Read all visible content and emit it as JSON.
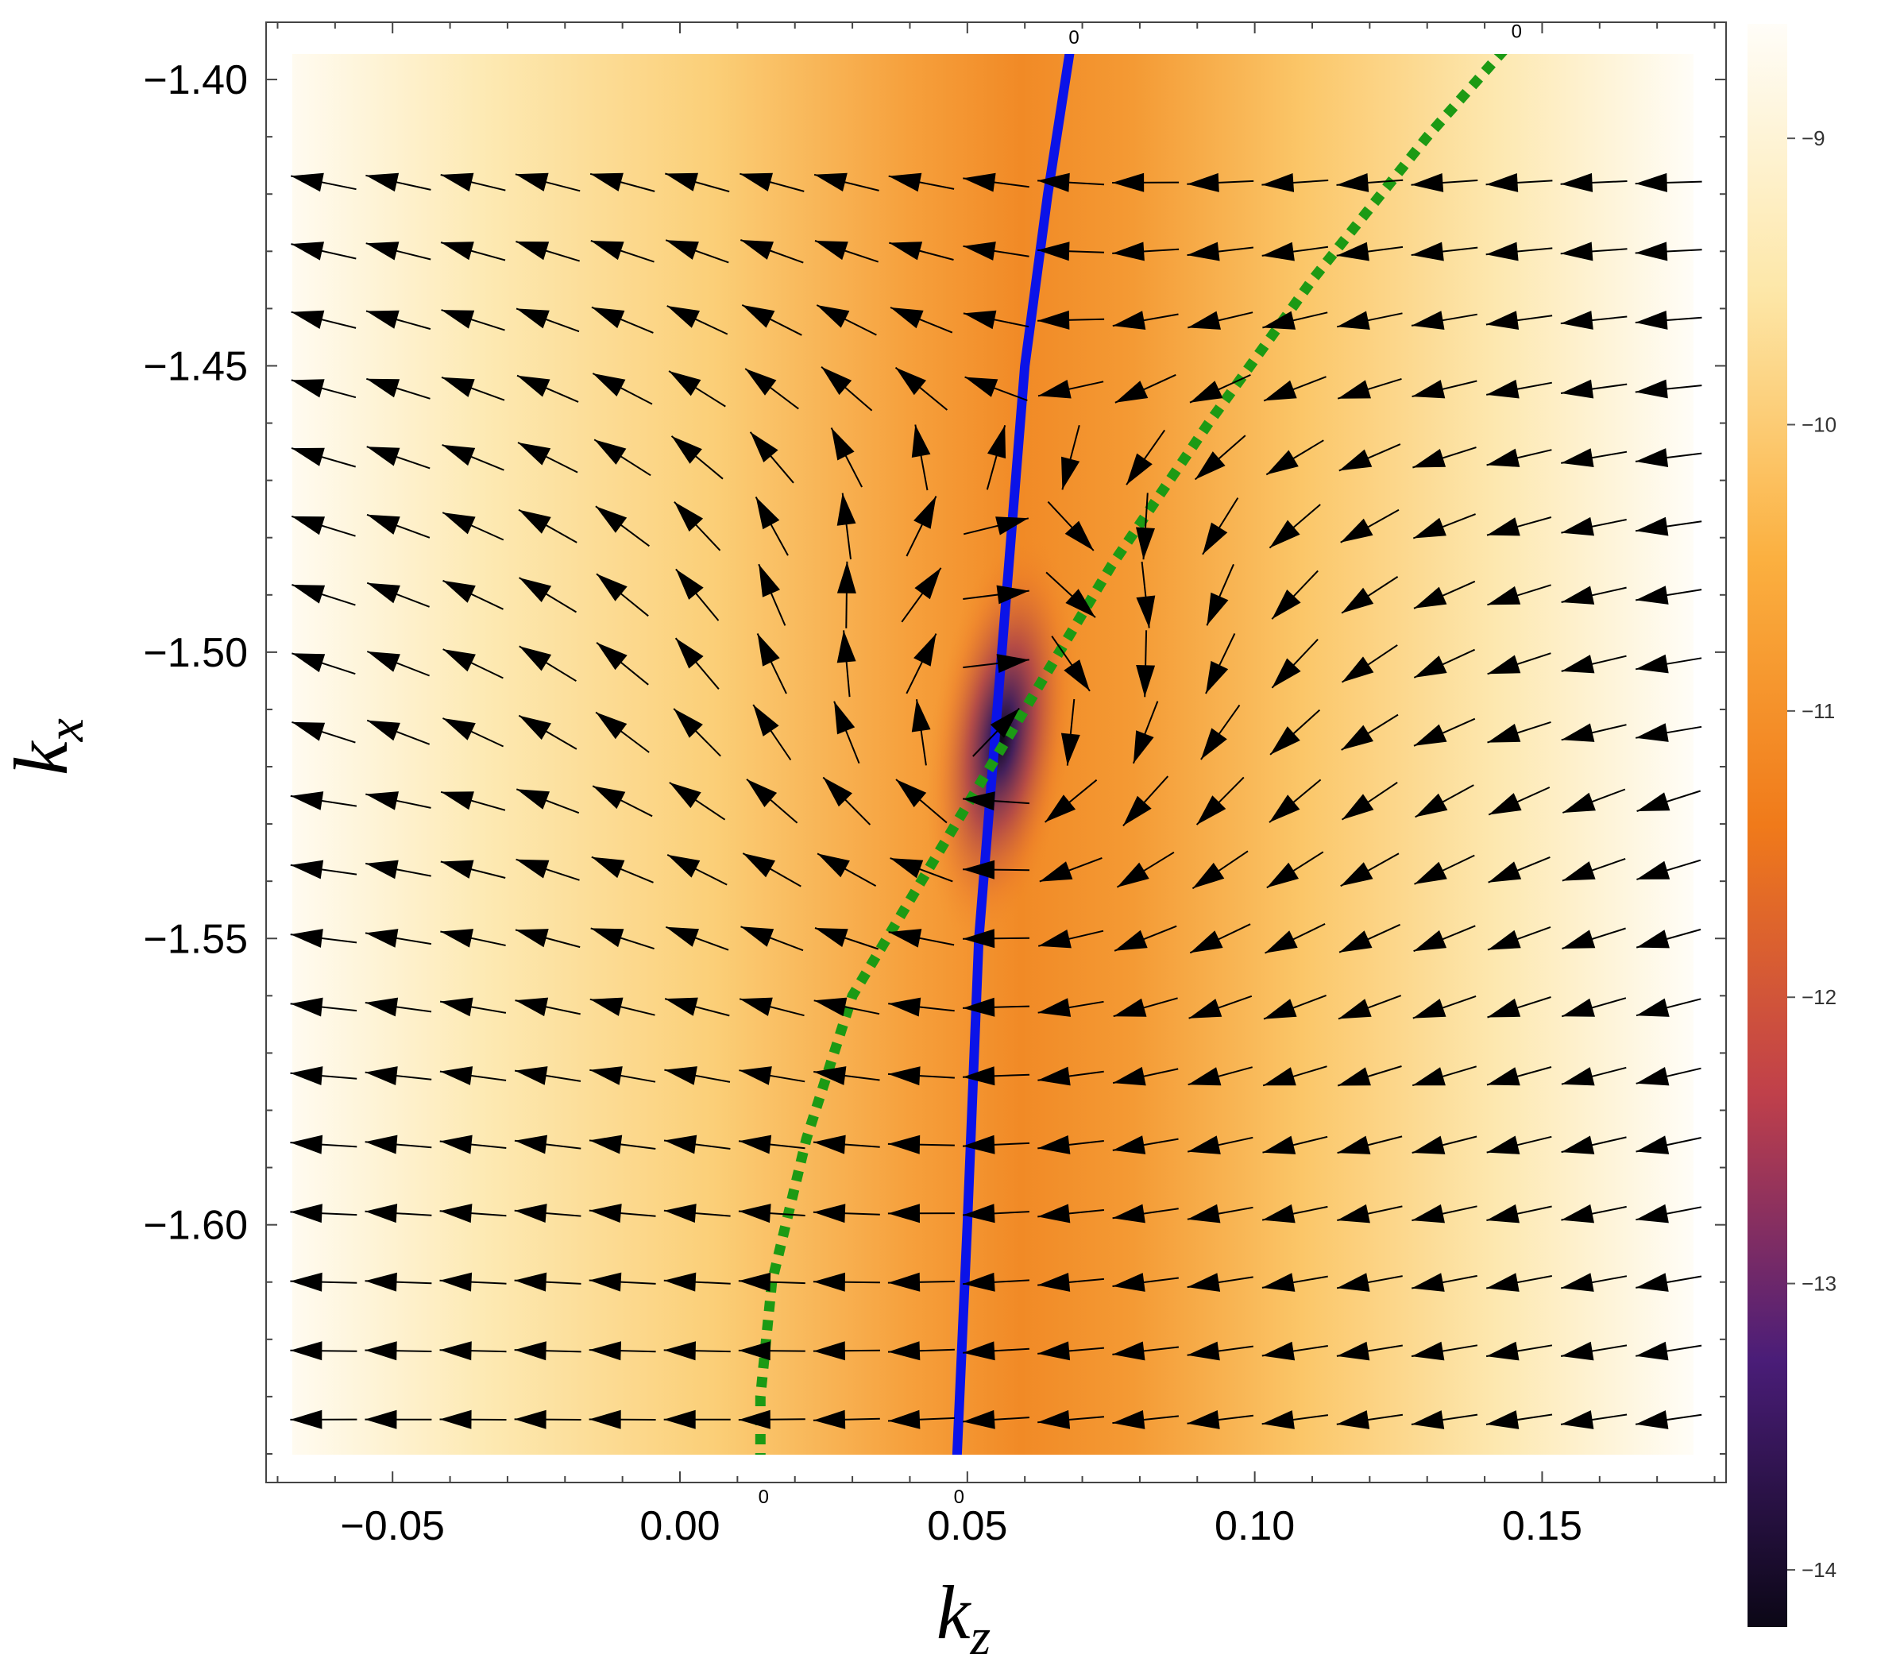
{
  "chart_data": {
    "type": "heatmap",
    "overlays": [
      "vector-field",
      "contour-lines"
    ],
    "xlabel": "k",
    "xlabel_sub": "z",
    "ylabel": "k",
    "ylabel_sub": "x",
    "xlim": [
      -0.072,
      0.182
    ],
    "ylim": [
      -1.645,
      -1.39
    ],
    "xticks": [
      -0.05,
      0.0,
      0.05,
      0.1,
      0.15
    ],
    "xtick_labels": [
      "−0.05",
      "0.00",
      "0.05",
      "0.10",
      "0.15"
    ],
    "yticks": [
      -1.4,
      -1.45,
      -1.5,
      -1.55,
      -1.6
    ],
    "ytick_labels": [
      "−1.40",
      "−1.45",
      "−1.50",
      "−1.55",
      "−1.60"
    ],
    "grid": false,
    "colorbar": {
      "range": [
        -14.2,
        -8.6
      ],
      "ticks": [
        -9,
        -10,
        -11,
        -12,
        -13,
        -14
      ],
      "tick_labels": [
        "−9",
        "−10",
        "−11",
        "−12",
        "−13",
        "−14"
      ],
      "colormap": [
        "#0b0716",
        "#4a1d78",
        "#c0404a",
        "#f07a1a",
        "#fbb040",
        "#fde7a8",
        "#fffdf8"
      ]
    },
    "minimum": {
      "kz": 0.056,
      "kx": -1.515
    },
    "contours": [
      {
        "level_label": "0",
        "style": "solid",
        "color": "#0b13e8",
        "points": [
          [
            0.048,
            -1.645
          ],
          [
            0.05,
            -1.6
          ],
          [
            0.052,
            -1.55
          ],
          [
            0.056,
            -1.5
          ],
          [
            0.06,
            -1.45
          ],
          [
            0.064,
            -1.42
          ],
          [
            0.068,
            -1.394
          ]
        ]
      },
      {
        "level_label": "0",
        "style": "dotted",
        "color": "#1c9a14",
        "points": [
          [
            0.014,
            -1.645
          ],
          [
            0.014,
            -1.63
          ],
          [
            0.016,
            -1.61
          ],
          [
            0.022,
            -1.585
          ],
          [
            0.03,
            -1.56
          ],
          [
            0.045,
            -1.535
          ],
          [
            0.06,
            -1.51
          ],
          [
            0.075,
            -1.485
          ],
          [
            0.092,
            -1.46
          ],
          [
            0.11,
            -1.435
          ],
          [
            0.13,
            -1.41
          ],
          [
            0.145,
            -1.393
          ]
        ]
      }
    ],
    "vector_field": {
      "kz_values": [
        -0.062,
        -0.049,
        -0.036,
        -0.023,
        -0.01,
        0.003,
        0.016,
        0.029,
        0.042,
        0.055,
        0.068,
        0.081,
        0.094,
        0.107,
        0.12,
        0.133,
        0.146,
        0.159,
        0.172
      ],
      "kx_values": [
        -1.418,
        -1.43,
        -1.442,
        -1.454,
        -1.466,
        -1.478,
        -1.49,
        -1.502,
        -1.514,
        -1.526,
        -1.538,
        -1.55,
        -1.562,
        -1.574,
        -1.586,
        -1.598,
        -1.61,
        -1.622,
        -1.634
      ],
      "center": {
        "kz": 0.056,
        "kx": -1.515
      },
      "far_direction": {
        "dkz": -1,
        "dkx": 0
      }
    }
  }
}
